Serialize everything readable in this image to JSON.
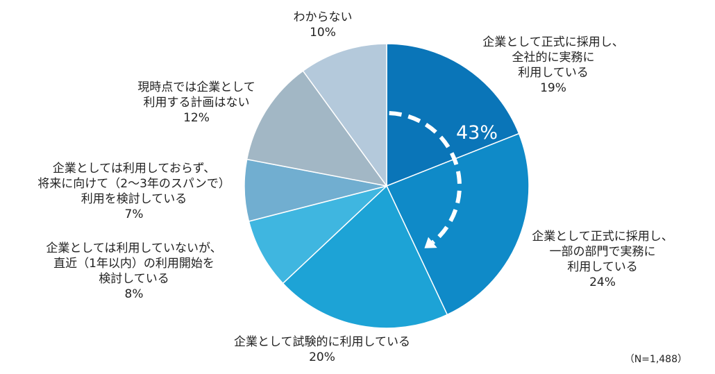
{
  "chart_data": {
    "type": "pie",
    "n_note": "（N=1,488）",
    "highlight_label": "43%",
    "slices": [
      {
        "lines": [
          "企業として正式に採用し、",
          "全社的に実務に",
          "利用している"
        ],
        "pct_label": "19%",
        "value": 19,
        "color": "#0a75b8"
      },
      {
        "lines": [
          "企業として正式に採用し、",
          "一部の部門で実務に",
          "利用している"
        ],
        "pct_label": "24%",
        "value": 24,
        "color": "#0f8ac8"
      },
      {
        "lines": [
          "企業として試験的に利用している"
        ],
        "pct_label": "20%",
        "value": 20,
        "color": "#1da3d6"
      },
      {
        "lines": [
          "企業としては利用していないが、",
          "直近（1年以内）の利用開始を",
          "検討している"
        ],
        "pct_label": "8%",
        "value": 8,
        "color": "#3fb6e0"
      },
      {
        "lines": [
          "企業としては利用しておらず、",
          "将来に向けて（2～3年のスパンで）",
          "利用を検討している"
        ],
        "pct_label": "7%",
        "value": 7,
        "color": "#71aed0"
      },
      {
        "lines": [
          "現時点では企業として",
          "利用する計画はない"
        ],
        "pct_label": "12%",
        "value": 12,
        "color": "#a2b7c5"
      },
      {
        "lines": [
          "わからない"
        ],
        "pct_label": "10%",
        "value": 10,
        "color": "#b4c9db"
      }
    ]
  }
}
